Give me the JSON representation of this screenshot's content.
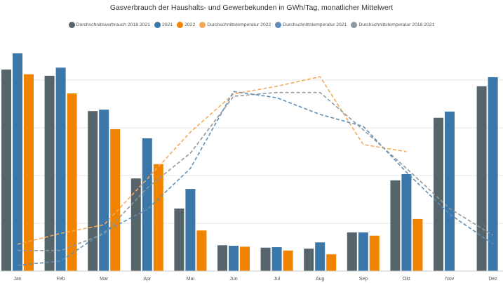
{
  "chart_data": {
    "type": "bar",
    "title": "Gasverbrauch der Haushalts- und Gewerbekunden in GWh/Tag, monatlicher Mittelwert",
    "xlabel": "",
    "ylabel": "",
    "ylim": [
      0,
      4.8
    ],
    "grid": true,
    "legend_position": "top",
    "categories": [
      "Jan",
      "Feb",
      "Mar",
      "Apr",
      "Mai",
      "Jun",
      "Jul",
      "Aug",
      "Sep",
      "Okt",
      "Nov",
      "Dez"
    ],
    "series": [
      {
        "name": "Durchschnittsverbrauch 2018 2021",
        "kind": "bar",
        "color": "#56646c",
        "values": [
          4.22,
          4.09,
          3.35,
          1.94,
          1.31,
          0.54,
          0.49,
          0.47,
          0.81,
          1.9,
          3.21,
          3.87
        ]
      },
      {
        "name": "2021",
        "kind": "bar",
        "color": "#3b77a8",
        "values": [
          4.56,
          4.26,
          3.38,
          2.78,
          1.72,
          0.53,
          0.5,
          0.6,
          0.81,
          2.03,
          3.34,
          4.06
        ]
      },
      {
        "name": "2022",
        "kind": "bar",
        "color": "#f08300",
        "values": [
          4.12,
          3.72,
          2.97,
          2.24,
          0.85,
          0.51,
          0.43,
          0.35,
          0.74,
          1.09,
          null,
          null
        ]
      },
      {
        "name": "Durchschnittstemperatur 2022",
        "kind": "line",
        "color": "#f4a95a",
        "values": [
          0.56,
          0.79,
          0.97,
          1.93,
          2.91,
          3.71,
          3.87,
          4.07,
          2.65,
          2.5,
          null,
          null
        ]
      },
      {
        "name": "Durchschnittstemperatur 2021",
        "kind": "line",
        "color": "#5f8fb8",
        "values": [
          0.12,
          0.21,
          0.82,
          1.29,
          2.15,
          3.76,
          3.63,
          3.28,
          3.03,
          2.07,
          1.19,
          0.57
        ]
      },
      {
        "name": "Durchschnittstemperatur 2018 2021",
        "kind": "line",
        "color": "#8e989f",
        "values": [
          0.43,
          0.43,
          0.78,
          1.74,
          2.47,
          3.66,
          3.74,
          3.74,
          2.96,
          2.15,
          1.31,
          0.75
        ]
      }
    ]
  }
}
